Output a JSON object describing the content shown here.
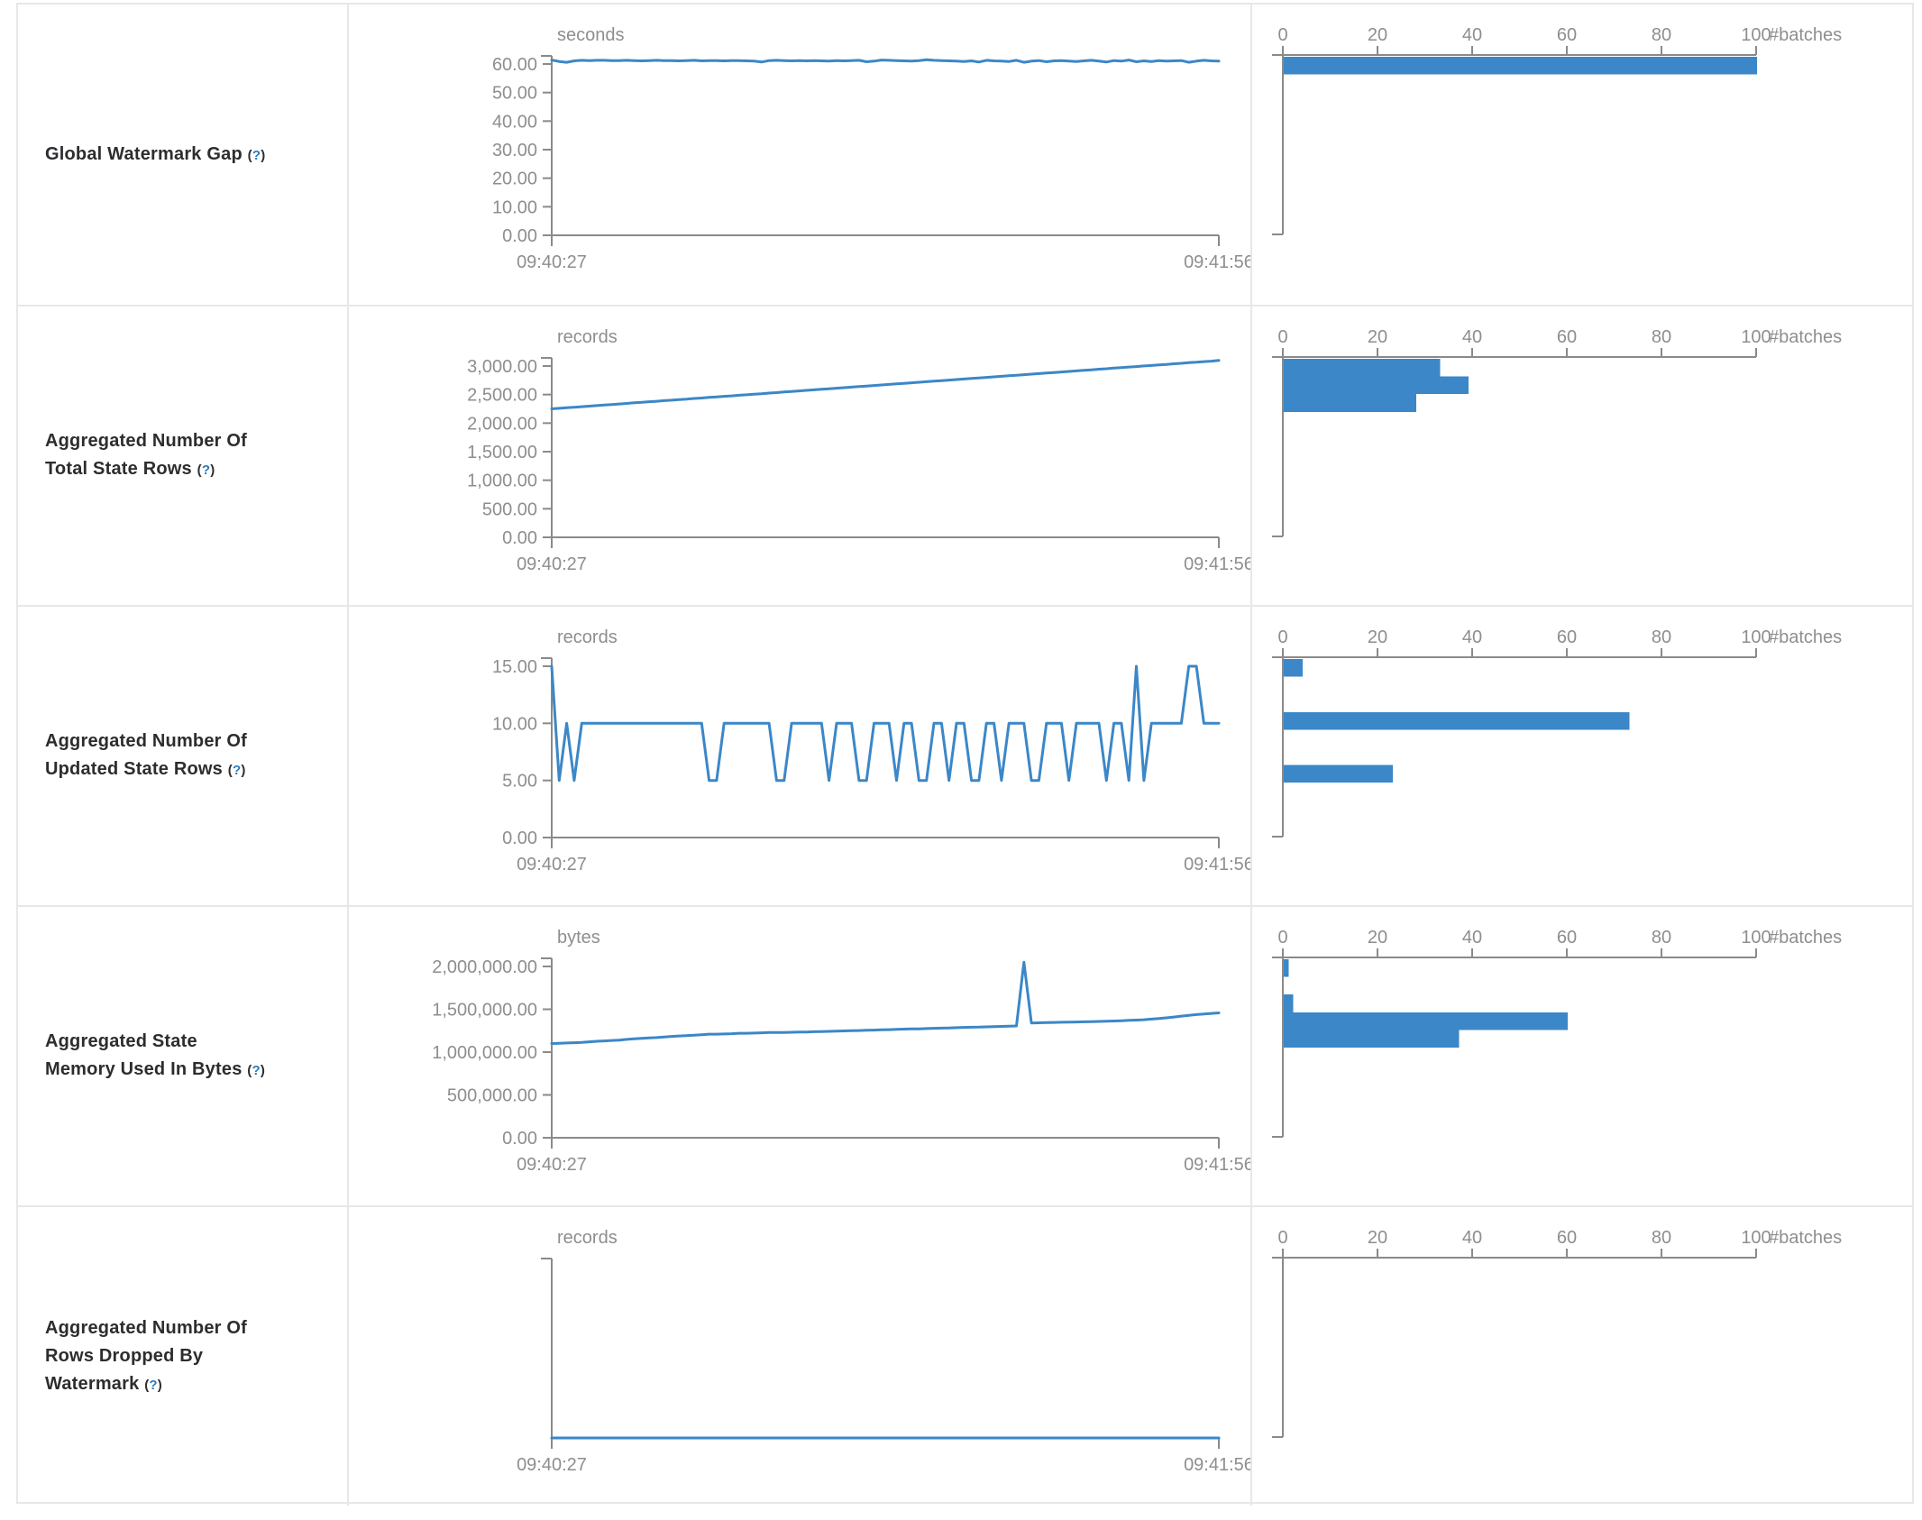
{
  "colors": {
    "accent": "#3b87c8",
    "axis_line": "#8a8a8a",
    "tick_text": "#8e8e8e",
    "border": "#e7e7ea",
    "label_text": "#2d2d30",
    "help_blue": "#2a7abc"
  },
  "hist_axis": {
    "ticks": [
      0,
      20,
      40,
      60,
      80,
      100
    ],
    "label": "#batches",
    "bin_count": 10
  },
  "time_axis": {
    "start": "09:40:27",
    "end": "09:41:56"
  },
  "chart_data": [
    {
      "row_label": "Global Watermark Gap",
      "help_open": "(",
      "help_char": "?",
      "help_close": ")",
      "timeline": {
        "type": "line",
        "title": "seconds",
        "x_range": [
          "09:40:27",
          "09:41:56"
        ],
        "y_ticks": [
          {
            "value": 60,
            "label": "60.00"
          },
          {
            "value": 50,
            "label": "50.00"
          },
          {
            "value": 40,
            "label": "40.00"
          },
          {
            "value": 30,
            "label": "30.00"
          },
          {
            "value": 20,
            "label": "20.00"
          },
          {
            "value": 10,
            "label": "10.00"
          },
          {
            "value": 0,
            "label": "0.00"
          }
        ],
        "ylim": [
          0,
          63
        ],
        "values": [
          61.4,
          60.9,
          60.6,
          61.1,
          61.3,
          61.2,
          61.3,
          61.3,
          61.2,
          61.2,
          61.3,
          61.2,
          61.1,
          61.2,
          61.3,
          61.2,
          61.2,
          61.1,
          61.2,
          61.3,
          61.1,
          61.2,
          61.2,
          61.1,
          61.2,
          61.2,
          61.1,
          61.0,
          60.7,
          61.2,
          61.3,
          61.2,
          61.1,
          61.2,
          61.1,
          61.2,
          61.1,
          61.0,
          61.2,
          61.1,
          61.2,
          61.3,
          60.8,
          61.0,
          61.4,
          61.3,
          61.2,
          61.1,
          61.0,
          61.2,
          61.5,
          61.3,
          61.2,
          61.1,
          61.0,
          60.9,
          61.1,
          60.7,
          61.3,
          61.1,
          61.0,
          60.9,
          61.3,
          60.6,
          61.0,
          61.2,
          60.8,
          61.1,
          61.2,
          61.0,
          60.9,
          61.1,
          61.3,
          61.0,
          60.7,
          61.2,
          61.0,
          61.4,
          60.8,
          61.1,
          60.9,
          61.2,
          61.0,
          61.1,
          61.2,
          60.6,
          61.0,
          61.3,
          61.1,
          61.0
        ]
      },
      "histogram": {
        "type": "bar",
        "orientation": "horizontal",
        "xlabel": "#batches",
        "x_ticks": [
          0,
          20,
          40,
          60,
          80,
          100
        ],
        "bars": [
          {
            "bin": 0,
            "count": 100
          }
        ]
      }
    },
    {
      "row_label": "Aggregated Number Of Total State Rows",
      "help_open": "(",
      "help_char": "?",
      "help_close": ")",
      "timeline": {
        "type": "line",
        "title": "records",
        "x_range": [
          "09:40:27",
          "09:41:56"
        ],
        "y_ticks": [
          {
            "value": 3000,
            "label": "3,000.00"
          },
          {
            "value": 2500,
            "label": "2,500.00"
          },
          {
            "value": 2000,
            "label": "2,000.00"
          },
          {
            "value": 1500,
            "label": "1,500.00"
          },
          {
            "value": 1000,
            "label": "1,000.00"
          },
          {
            "value": 500,
            "label": "500.00"
          },
          {
            "value": 0,
            "label": "0.00"
          }
        ],
        "ylim": [
          0,
          3150
        ],
        "values": [
          2250,
          2260,
          2269,
          2279,
          2288,
          2298,
          2307,
          2317,
          2326,
          2336,
          2345,
          2355,
          2364,
          2374,
          2383,
          2393,
          2402,
          2412,
          2421,
          2431,
          2440,
          2450,
          2459,
          2469,
          2478,
          2488,
          2497,
          2507,
          2516,
          2526,
          2535,
          2545,
          2554,
          2564,
          2573,
          2583,
          2592,
          2602,
          2611,
          2621,
          2630,
          2640,
          2649,
          2659,
          2668,
          2678,
          2687,
          2697,
          2706,
          2716,
          2725,
          2735,
          2744,
          2754,
          2763,
          2773,
          2782,
          2792,
          2801,
          2811,
          2820,
          2830,
          2839,
          2849,
          2858,
          2868,
          2877,
          2887,
          2896,
          2906,
          2915,
          2925,
          2934,
          2944,
          2953,
          2963,
          2972,
          2982,
          2991,
          3001,
          3010,
          3020,
          3029,
          3039,
          3048,
          3058,
          3067,
          3077,
          3086,
          3100
        ]
      },
      "histogram": {
        "type": "bar",
        "orientation": "horizontal",
        "xlabel": "#batches",
        "x_ticks": [
          0,
          20,
          40,
          60,
          80,
          100
        ],
        "bars": [
          {
            "bin": 0,
            "count": 33
          },
          {
            "bin": 1,
            "count": 39
          },
          {
            "bin": 2,
            "count": 28
          }
        ]
      }
    },
    {
      "row_label": "Aggregated Number Of Updated State Rows",
      "help_open": "(",
      "help_char": "?",
      "help_close": ")",
      "timeline": {
        "type": "line",
        "title": "records",
        "x_range": [
          "09:40:27",
          "09:41:56"
        ],
        "y_ticks": [
          {
            "value": 15,
            "label": "15.00"
          },
          {
            "value": 10,
            "label": "10.00"
          },
          {
            "value": 5,
            "label": "5.00"
          },
          {
            "value": 0,
            "label": "0.00"
          }
        ],
        "ylim": [
          0,
          15.75
        ],
        "values": [
          15,
          5,
          10,
          5,
          10,
          10,
          10,
          10,
          10,
          10,
          10,
          10,
          10,
          10,
          10,
          10,
          10,
          10,
          10,
          10,
          10,
          5,
          5,
          10,
          10,
          10,
          10,
          10,
          10,
          10,
          5,
          5,
          10,
          10,
          10,
          10,
          10,
          5,
          10,
          10,
          10,
          5,
          5,
          10,
          10,
          10,
          5,
          10,
          10,
          5,
          5,
          10,
          10,
          5,
          10,
          10,
          5,
          5,
          10,
          10,
          5,
          10,
          10,
          10,
          5,
          5,
          10,
          10,
          10,
          5,
          10,
          10,
          10,
          10,
          5,
          10,
          10,
          5,
          15,
          5,
          10,
          10,
          10,
          10,
          10,
          15,
          15,
          10,
          10,
          10
        ]
      },
      "histogram": {
        "type": "bar",
        "orientation": "horizontal",
        "xlabel": "#batches",
        "x_ticks": [
          0,
          20,
          40,
          60,
          80,
          100
        ],
        "bars": [
          {
            "bin": 0,
            "count": 4
          },
          {
            "bin": 3,
            "count": 73
          },
          {
            "bin": 6,
            "count": 23
          }
        ]
      }
    },
    {
      "row_label": "Aggregated State Memory Used In Bytes",
      "help_open": "(",
      "help_char": "?",
      "help_close": ")",
      "timeline": {
        "type": "line",
        "title": "bytes",
        "x_range": [
          "09:40:27",
          "09:41:56"
        ],
        "y_ticks": [
          {
            "value": 2000000,
            "label": "2,000,000.00"
          },
          {
            "value": 1500000,
            "label": "1,500,000.00"
          },
          {
            "value": 1000000,
            "label": "1,000,000.00"
          },
          {
            "value": 500000,
            "label": "500,000.00"
          },
          {
            "value": 0,
            "label": "0.00"
          }
        ],
        "ylim": [
          0,
          2150000
        ],
        "values": [
          1100000,
          1103000,
          1106000,
          1110000,
          1113000,
          1120000,
          1126000,
          1131000,
          1136000,
          1140000,
          1148000,
          1155000,
          1160000,
          1166000,
          1170000,
          1177000,
          1183000,
          1188000,
          1193000,
          1197000,
          1203000,
          1210000,
          1210000,
          1212000,
          1215000,
          1220000,
          1220000,
          1222000,
          1225000,
          1228000,
          1228000,
          1230000,
          1232000,
          1235000,
          1235000,
          1238000,
          1240000,
          1242000,
          1245000,
          1247000,
          1250000,
          1252000,
          1255000,
          1257000,
          1260000,
          1262000,
          1265000,
          1268000,
          1270000,
          1272000,
          1275000,
          1278000,
          1280000,
          1282000,
          1285000,
          1288000,
          1290000,
          1292000,
          1295000,
          1297000,
          1300000,
          1302000,
          1305000,
          2050000,
          1340000,
          1342000,
          1344000,
          1346000,
          1348000,
          1350000,
          1352000,
          1354000,
          1356000,
          1358000,
          1360000,
          1363000,
          1366000,
          1370000,
          1374000,
          1378000,
          1385000,
          1392000,
          1400000,
          1410000,
          1420000,
          1430000,
          1438000,
          1445000,
          1452000,
          1458000
        ]
      },
      "histogram": {
        "type": "bar",
        "orientation": "horizontal",
        "xlabel": "#batches",
        "x_ticks": [
          0,
          20,
          40,
          60,
          80,
          100
        ],
        "bars": [
          {
            "bin": 0,
            "count": 1
          },
          {
            "bin": 2,
            "count": 2
          },
          {
            "bin": 3,
            "count": 60
          },
          {
            "bin": 4,
            "count": 37
          }
        ]
      }
    },
    {
      "row_label": "Aggregated Number Of Rows Dropped By Watermark",
      "help_open": "(",
      "help_char": "?",
      "help_close": ")",
      "timeline": {
        "type": "line",
        "title": "records",
        "x_range": [
          "09:40:27",
          "09:41:56"
        ],
        "y_ticks": [],
        "ylim": [
          0,
          1
        ],
        "values": [
          0,
          0,
          0,
          0,
          0,
          0,
          0,
          0,
          0,
          0
        ]
      },
      "histogram": {
        "type": "bar",
        "orientation": "horizontal",
        "xlabel": "#batches",
        "x_ticks": [
          0,
          20,
          40,
          60,
          80,
          100
        ],
        "bars": []
      }
    }
  ]
}
